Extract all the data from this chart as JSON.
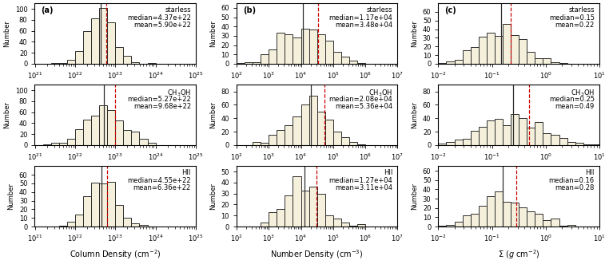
{
  "hist_face_color": "#f5f0dc",
  "hist_edge_color": "#2d2d2d",
  "median_line_color": "#2d2d2d",
  "mean_line_color": "#cc0000",
  "background_color": "#ffffff",
  "col_a": {
    "label": "(a)",
    "xlabel": "Column Density (cm$^{-2}$)",
    "xlim_low": 21,
    "xlim_high": 25,
    "rows": [
      {
        "name": "starless",
        "median": 4.37e+22,
        "mean": 5.9e+22,
        "ylim_high": 110,
        "yticks": [
          0,
          20,
          40,
          60,
          80,
          100
        ],
        "median_txt": "median=4.37e+22",
        "mean_txt": "mean=5.90e+22",
        "n": 400
      },
      {
        "name": "CH$_3$OH",
        "median": 5.27e+22,
        "mean": 9.68e+22,
        "ylim_high": 110,
        "yticks": [
          0,
          20,
          40,
          60,
          80,
          100
        ],
        "median_txt": "median=5.27e+22",
        "mean_txt": "mean=9.68e+22",
        "n": 400
      },
      {
        "name": "HII",
        "median": 4.55e+22,
        "mean": 6.36e+22,
        "ylim_high": 70,
        "yticks": [
          0,
          10,
          20,
          30,
          40,
          50,
          60
        ],
        "median_txt": "median=4.55e+22",
        "mean_txt": "mean=6.36e+22",
        "n": 250
      }
    ]
  },
  "col_b": {
    "label": "(b)",
    "xlabel": "Number Density (cm$^{-3}$)",
    "xlim_low": 2,
    "xlim_high": 7,
    "rows": [
      {
        "name": "starless",
        "median": 11700.0,
        "mean": 34800.0,
        "ylim_high": 65,
        "yticks": [
          0,
          10,
          20,
          30,
          40,
          50,
          60
        ],
        "median_txt": "median=1.17e+04",
        "mean_txt": "mean=3.48e+04",
        "n": 280
      },
      {
        "name": "CH$_3$OH",
        "median": 20800.0,
        "mean": 53600.0,
        "ylim_high": 90,
        "yticks": [
          0,
          20,
          40,
          60,
          80
        ],
        "median_txt": "median=2.08e+04",
        "mean_txt": "mean=5.36e+04",
        "n": 380
      },
      {
        "name": "HII",
        "median": 12700.0,
        "mean": 31100.0,
        "ylim_high": 55,
        "yticks": [
          0,
          10,
          20,
          30,
          40,
          50
        ],
        "median_txt": "median=1.27e+04",
        "mean_txt": "mean=3.11e+04",
        "n": 230
      }
    ]
  },
  "col_c": {
    "label": "(c)",
    "xlabel": "$\\Sigma$ ($g$ cm$^{-2}$)",
    "xlim_low": -2,
    "xlim_high": 1,
    "rows": [
      {
        "name": "starless",
        "median": 0.15,
        "mean": 0.22,
        "ylim_high": 70,
        "yticks": [
          0,
          10,
          20,
          30,
          40,
          50,
          60
        ],
        "median_txt": "median=0.15",
        "mean_txt": "mean=0.22",
        "n": 280
      },
      {
        "name": "CH$_3$OH",
        "median": 0.25,
        "mean": 0.49,
        "ylim_high": 90,
        "yticks": [
          0,
          20,
          40,
          60,
          80
        ],
        "median_txt": "median=0.25",
        "mean_txt": "mean=0.49",
        "n": 380
      },
      {
        "name": "HII",
        "median": 0.16,
        "mean": 0.28,
        "ylim_high": 65,
        "yticks": [
          0,
          10,
          20,
          30,
          40,
          50,
          60
        ],
        "median_txt": "median=0.16",
        "mean_txt": "mean=0.28",
        "n": 250
      }
    ]
  }
}
